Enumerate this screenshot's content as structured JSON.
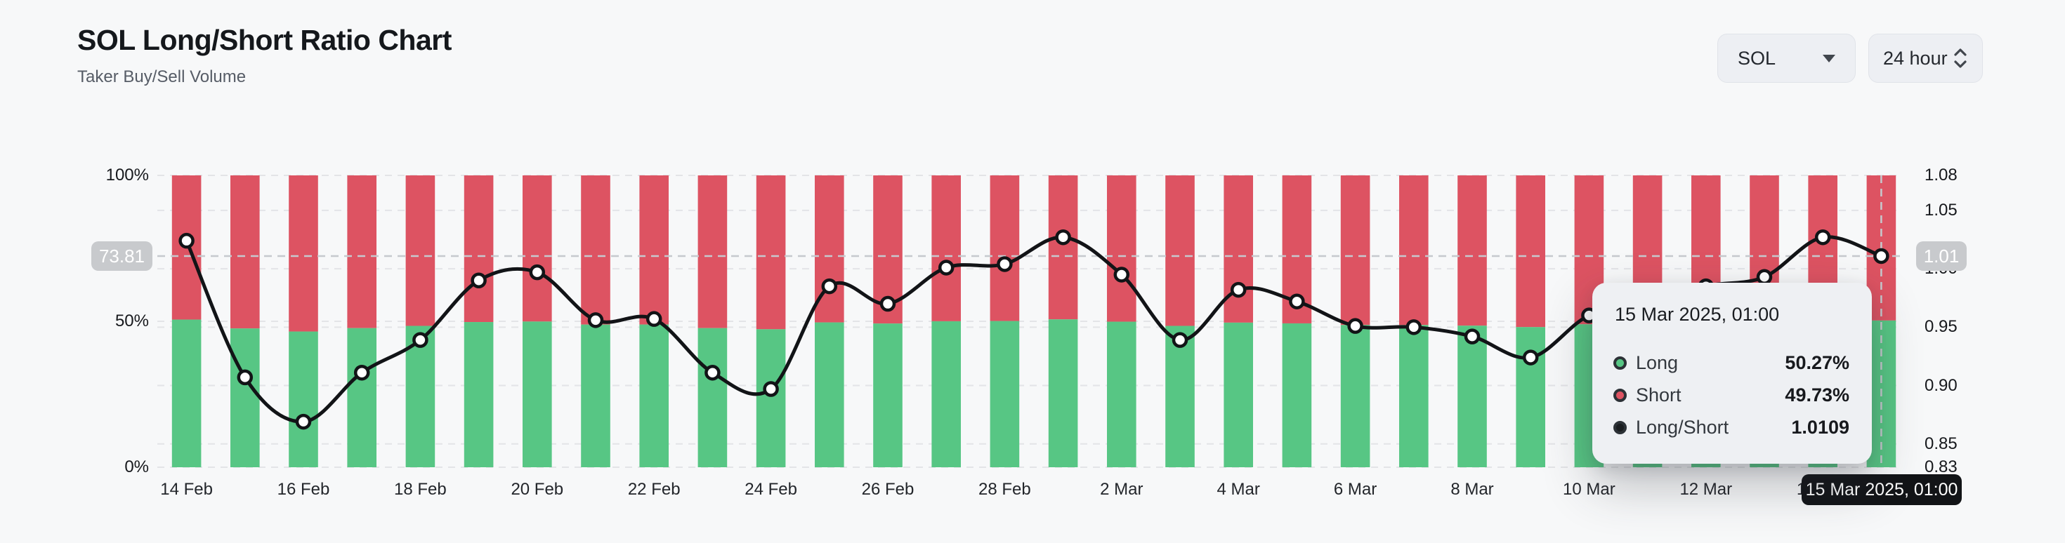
{
  "header": {
    "title": "SOL Long/Short Ratio Chart",
    "subtitle": "Taker Buy/Sell Volume"
  },
  "controls": {
    "symbol_select": {
      "value": "SOL"
    },
    "interval_select": {
      "value": "24 hour"
    }
  },
  "colors": {
    "long_green": "#57c684",
    "short_red": "#dd5362",
    "line_black": "#121417",
    "page_bg": "#f7f8f9",
    "hgrid": "#e3e4e7",
    "vgrid": "#e9eaed",
    "crosshair": "#c6c9ce",
    "badge_bg": "#c8cacd",
    "tooltip_bg": "#eef0f3",
    "pill_bg": "#121417"
  },
  "chart_data": {
    "type": "bar+line (100% stacked long/short taker volume bars with long/short ratio line)",
    "title": "SOL Long/Short Ratio Chart",
    "x": [
      "14 Feb",
      "15 Feb",
      "16 Feb",
      "17 Feb",
      "18 Feb",
      "19 Feb",
      "20 Feb",
      "21 Feb",
      "22 Feb",
      "23 Feb",
      "24 Feb",
      "25 Feb",
      "26 Feb",
      "27 Feb",
      "28 Feb",
      "1 Mar",
      "2 Mar",
      "3 Mar",
      "4 Mar",
      "5 Mar",
      "6 Mar",
      "7 Mar",
      "8 Mar",
      "9 Mar",
      "10 Mar",
      "11 Mar",
      "12 Mar",
      "13 Mar",
      "14 Mar",
      "15 Mar"
    ],
    "x_tick_every": 2,
    "series": [
      {
        "name": "Long",
        "type": "bar",
        "unit": "%",
        "color": "#57c684",
        "values": [
          50.59,
          47.56,
          46.5,
          47.67,
          48.43,
          49.75,
          49.92,
          48.88,
          48.9,
          47.67,
          47.28,
          49.62,
          49.24,
          50.02,
          50.1,
          50.67,
          49.87,
          48.43,
          49.55,
          49.29,
          48.74,
          48.72,
          48.51,
          48.02,
          48.98,
          49.19,
          49.62,
          49.82,
          50.67,
          50.27
        ]
      },
      {
        "name": "Short",
        "type": "bar",
        "unit": "%",
        "color": "#dd5362",
        "values": [
          49.41,
          52.44,
          53.5,
          52.33,
          51.57,
          50.25,
          50.08,
          51.12,
          51.1,
          52.33,
          52.72,
          50.38,
          50.76,
          49.98,
          49.9,
          49.33,
          50.13,
          51.57,
          50.45,
          50.71,
          51.26,
          51.28,
          51.49,
          51.98,
          51.02,
          50.81,
          50.38,
          50.18,
          49.33,
          49.73
        ]
      },
      {
        "name": "Long/Short",
        "type": "line",
        "color": "#121417",
        "values": [
          1.024,
          0.907,
          0.869,
          0.911,
          0.939,
          0.99,
          0.997,
          0.956,
          0.957,
          0.911,
          0.897,
          0.985,
          0.97,
          1.001,
          1.004,
          1.027,
          0.995,
          0.939,
          0.982,
          0.972,
          0.951,
          0.95,
          0.942,
          0.924,
          0.96,
          0.968,
          0.985,
          0.993,
          1.027,
          1.0109
        ]
      }
    ],
    "left_axis": {
      "ticks": [
        "100%",
        "50%",
        "0%"
      ],
      "range": [
        0,
        100
      ]
    },
    "right_axis": {
      "ticks": [
        "1.08",
        "1.05",
        "1.00",
        "0.95",
        "0.90",
        "0.85",
        "0.83"
      ],
      "range": [
        0.83,
        1.08
      ]
    },
    "grid": true,
    "legend_position": "none (legend shown inside tooltip)"
  },
  "crosshair": {
    "index": 29,
    "ratio": 1.0109,
    "left_value": "73.81",
    "right_value": "1.01",
    "x_label": "15 Mar 2025, 01:00"
  },
  "tooltip": {
    "title": "15 Mar 2025, 01:00",
    "rows": [
      {
        "label": "Long",
        "value": "50.27%",
        "color": "#57c684"
      },
      {
        "label": "Short",
        "value": "49.73%",
        "color": "#dd5362"
      },
      {
        "label": "Long/Short",
        "value": "1.0109",
        "color": "#1a1d20"
      }
    ]
  }
}
